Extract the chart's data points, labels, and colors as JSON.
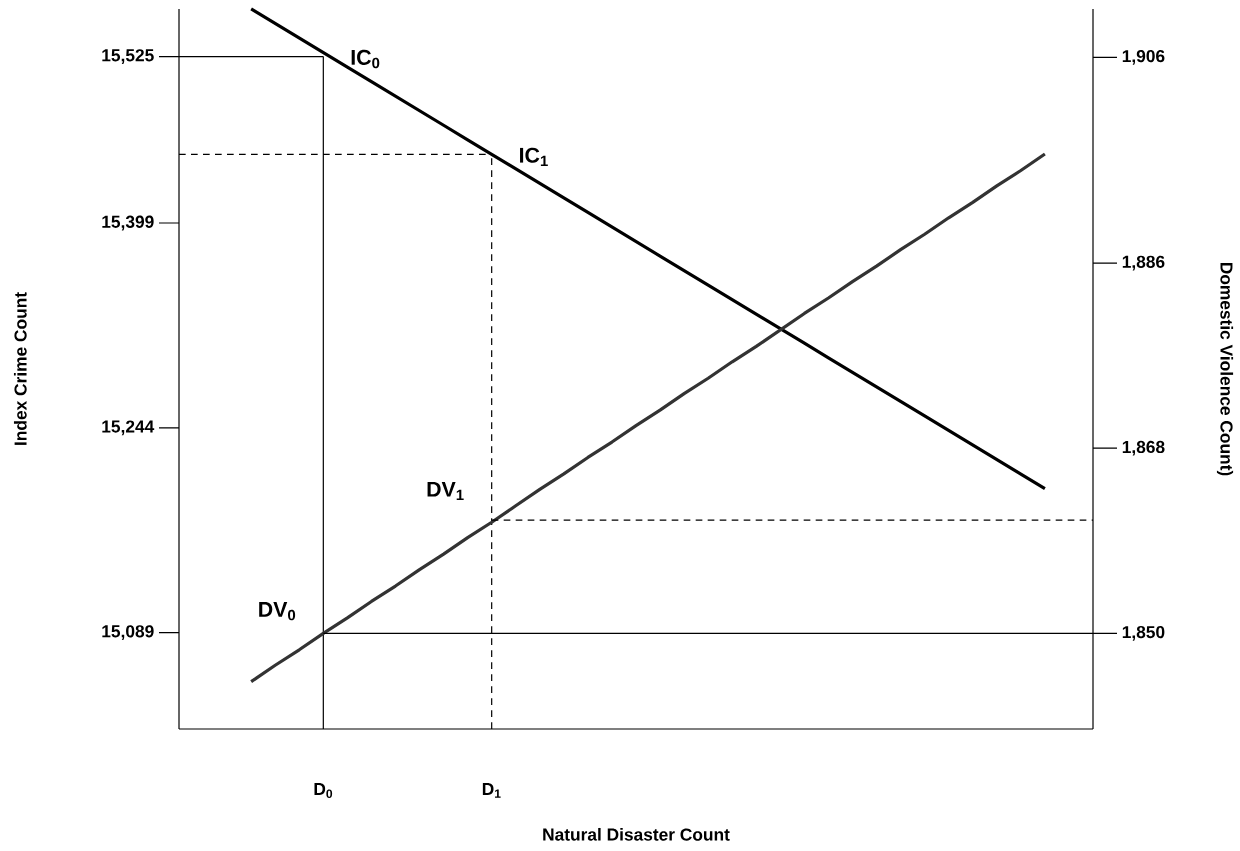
{
  "chart_data": {
    "type": "line",
    "xlabel": "Natural Disaster Count",
    "ylabel": "Index Crime Count",
    "y2label": "Domestic Violence Count)",
    "categories": [
      null,
      null,
      null,
      null,
      null,
      null,
      "D$_{0}$",
      null,
      null,
      null,
      null,
      null,
      null,
      "D$_{1}$",
      null,
      null,
      null,
      null,
      null,
      null,
      null,
      null,
      null,
      null,
      null,
      null,
      null,
      null,
      null,
      null,
      null,
      null,
      null,
      null,
      null,
      null,
      null,
      null,
      null
    ],
    "ylim": [
      15016,
      15561
    ],
    "yticks": [
      {
        "value": 15089,
        "label": "15,089"
      },
      {
        "value": 15244,
        "label": "15,244"
      },
      {
        "value": 15399,
        "label": "15,399"
      },
      {
        "value": 15525,
        "label": "15,525"
      }
    ],
    "y2lim": [
      1840.7,
      1910.7
    ],
    "y2ticks": [
      {
        "value": 1850,
        "label": "1,850"
      },
      {
        "value": 1868,
        "label": "1,868"
      },
      {
        "value": 1886,
        "label": "1,886"
      },
      {
        "value": 1906,
        "label": "1,906"
      }
    ],
    "series": [
      {
        "color": "#000000",
        "line_style": "solid",
        "values": [
          null,
          null,
          null,
          15561,
          15550,
          15539,
          15528,
          15517,
          15506,
          15495,
          15484,
          15473,
          15462,
          15451,
          15440,
          15429,
          15418,
          15407,
          15396,
          15385,
          15374,
          15363,
          15352,
          15341,
          15330,
          15319,
          15308,
          15297,
          15286,
          15275,
          15264,
          15253,
          15242,
          15231,
          15220,
          15209,
          15198,
          null,
          null
        ]
      },
      {
        "color": "#333333",
        "line_style": "solid",
        "axis": "y2",
        "values": [
          null,
          null,
          null,
          1845.3,
          1846.9,
          1848.4,
          1850.0,
          1851.5,
          1853.1,
          1854.6,
          1856.2,
          1857.7,
          1859.3,
          1860.8,
          1862.4,
          1864.0,
          1865.5,
          1867.1,
          1868.6,
          1870.2,
          1871.7,
          1873.3,
          1874.8,
          1876.4,
          1877.9,
          1879.5,
          1881.1,
          1882.6,
          1884.2,
          1885.7,
          1887.3,
          1888.8,
          1890.4,
          1891.9,
          1893.5,
          1895.0,
          1896.6,
          null,
          null
        ]
      },
      {
        "color": "#000000",
        "line_style": "solid",
        "values": [
          15525,
          15525,
          15525,
          15525,
          15525,
          15525,
          15525,
          null,
          null,
          null,
          null,
          null,
          null,
          null,
          null,
          null,
          null,
          null,
          null,
          null,
          null,
          null,
          null,
          null,
          null,
          null,
          null,
          null,
          null,
          null,
          null,
          null,
          null,
          null,
          null,
          null,
          null,
          null,
          null
        ]
      },
      {
        "color": "#000000",
        "line_style": "solid",
        "x": [
          "D$_{0}$",
          "D$_{0}$"
        ],
        "values": [
          15016,
          15525
        ]
      },
      {
        "color": "#000000",
        "line_style": "dashed",
        "values": [
          15451,
          15451,
          15451,
          15451,
          15451,
          15451,
          15451,
          15451,
          15451,
          15451,
          15451,
          15451,
          15451,
          15451,
          null,
          null,
          null,
          null,
          null,
          null,
          null,
          null,
          null,
          null,
          null,
          null,
          null,
          null,
          null,
          null,
          null,
          null,
          null,
          null,
          null,
          null,
          null,
          null,
          null
        ]
      },
      {
        "color": "#000000",
        "line_style": "dashed",
        "x": [
          "D$_{1}$",
          "D$_{1}$"
        ],
        "values": [
          15016,
          15451
        ]
      },
      {
        "color": "#000000",
        "line_style": "dashed",
        "axis": "y2",
        "values": [
          null,
          null,
          null,
          null,
          null,
          null,
          null,
          null,
          null,
          null,
          null,
          null,
          null,
          1861,
          1861,
          1861,
          1861,
          1861,
          1861,
          1861,
          1861,
          1861,
          1861,
          1861,
          1861,
          1861,
          1861,
          1861,
          1861,
          1861,
          1861,
          1861,
          1861,
          1861,
          1861,
          1861,
          1861,
          1861,
          1861
        ]
      },
      {
        "color": "#000000",
        "line_style": "solid",
        "axis": "y2",
        "values": [
          null,
          null,
          null,
          null,
          null,
          null,
          1850,
          1850,
          1850,
          1850,
          1850,
          1850,
          1850,
          1850,
          1850,
          1850,
          1850,
          1850,
          1850,
          1850,
          1850,
          1850,
          1850,
          1850,
          1850,
          1850,
          1850,
          1850,
          1850,
          1850,
          1850,
          1850,
          1850,
          1850,
          1850,
          1850,
          1850,
          1850,
          1850
        ]
      }
    ],
    "annotations": [
      {
        "text": "IC$_{0}$",
        "x": "D$_{0}$",
        "y": 15525
      },
      {
        "text": "IC$_{1}$",
        "x": "D$_{1}$",
        "y": 15451
      },
      {
        "text": "DV$_{1}$",
        "x": "D$_{1}$",
        "y": 15180
      },
      {
        "text": "DV$_{0}$",
        "x": "D$_{0}$",
        "y": 15089
      }
    ]
  }
}
